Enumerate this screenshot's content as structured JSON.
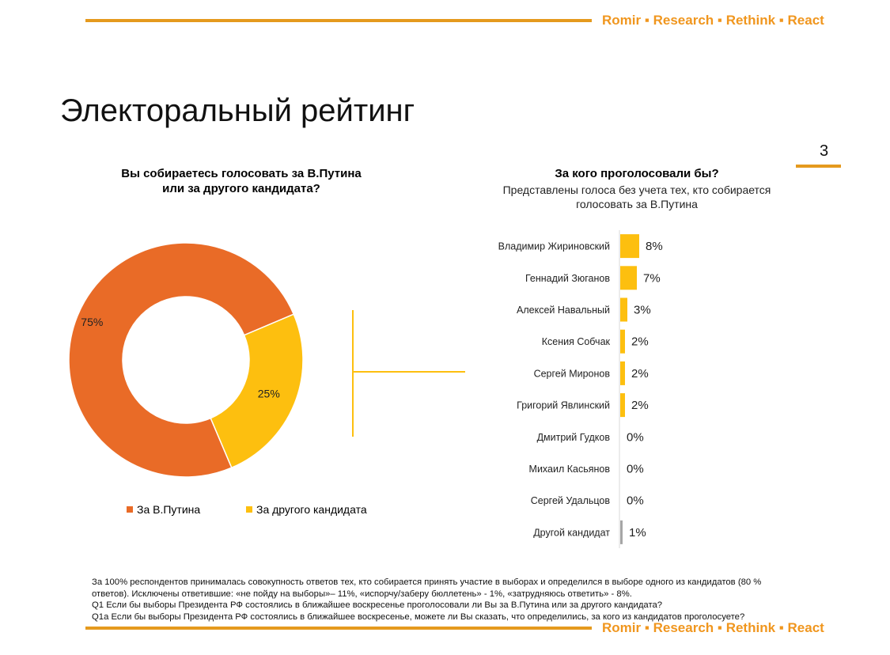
{
  "brand": {
    "part1": "Romir",
    "part2": "Research",
    "part3": "Rethink",
    "part4": "React",
    "separator": "▪",
    "color": "#f0961e"
  },
  "page": {
    "title": "Электоральный рейтинг",
    "page_number": "3"
  },
  "donut": {
    "title_line1": "Вы собираетесь голосовать за В.Путина",
    "title_line2": "или за другого кандидата?",
    "legend": [
      {
        "label": "За В.Путина",
        "color": "#e96b27"
      },
      {
        "label": "За другого кандидата",
        "color": "#fdbf0f"
      }
    ]
  },
  "bars": {
    "title": "За кого проголосовали бы?",
    "subtitle_line1": "Представлены голоса без учета тех, кто собирается",
    "subtitle_line2": "голосовать за В.Путина"
  },
  "chart_data": [
    {
      "type": "pie",
      "title": "Вы собираетесь голосовать за В.Путина или за другого кандидата?",
      "categories": [
        "За В.Путина",
        "За другого кандидата"
      ],
      "values": [
        75,
        25
      ],
      "data_labels": [
        "75%",
        "25%"
      ],
      "colors": [
        "#e96b27",
        "#fdbf0f"
      ],
      "donut": true,
      "legend": "bottom"
    },
    {
      "type": "bar",
      "orientation": "horizontal",
      "title": "За кого проголосовали бы?",
      "subtitle": "Представлены голоса без учета тех, кто собирается голосовать за В.Путина",
      "categories": [
        "Владимир Жириновский",
        "Геннадий Зюганов",
        "Алексей Навальный",
        "Ксения Собчак",
        "Сергей Миронов",
        "Григорий Явлинский",
        "Дмитрий Гудков",
        "Михаил Касьянов",
        "Сергей Удальцов",
        "Другой кандидат"
      ],
      "values": [
        8,
        7,
        3,
        2,
        2,
        2,
        0,
        0,
        0,
        1
      ],
      "data_labels": [
        "8%",
        "7%",
        "3%",
        "2%",
        "2%",
        "2%",
        "0%",
        "0%",
        "0%",
        "1%"
      ],
      "colors": [
        "#fdbf0f",
        "#fdbf0f",
        "#fdbf0f",
        "#fdbf0f",
        "#fdbf0f",
        "#fdbf0f",
        "#fdbf0f",
        "#fdbf0f",
        "#fdbf0f",
        "#a6a6a6"
      ],
      "grid": false
    }
  ],
  "footnote": {
    "line1": "За 100% респондентов принималась совокупность ответов тех, кто собирается принять участие в выборах и определился в выборе одного из кандидатов (80 %",
    "line2": "ответов). Исключены ответившие:  «не пойду на выборы»– 11%, «испорчу/заберу бюллетень» - 1%, «затрудняюсь ответить» - 8%.",
    "line3": "Q1 Если бы выборы Президента РФ состоялись в ближайшее воскресенье проголосовали ли Вы за В.Путина или за другого кандидата?",
    "line4": "Q1a Если бы выборы Президента РФ состоялись в ближайшее воскресенье, можете ли Вы сказать, что определились, за кого из кандидатов  проголосуете?"
  }
}
